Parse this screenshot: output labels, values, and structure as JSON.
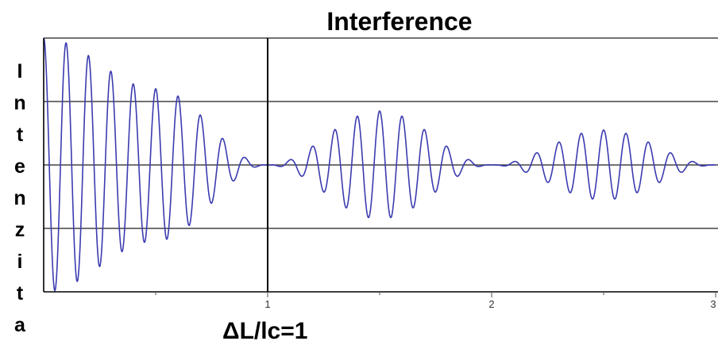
{
  "chart_data": {
    "type": "line",
    "title": "Interference",
    "ylabel": "Intenzita",
    "xlabel": "ΔL/lc=1",
    "x_ticks": [
      "1",
      "2",
      "3"
    ],
    "xlim": [
      0,
      3
    ],
    "ylim": [
      -2,
      2
    ],
    "grid": true,
    "series": [
      {
        "color": "#3b3bb0",
        "description_values": {
          "fringe_frequency_per_unit": 10,
          "envelope_amplitude_at": [
            {
              "x": 0.0,
              "amp": 2.0
            },
            {
              "x": 0.5,
              "amp": 1.2
            },
            {
              "x": 1.0,
              "amp": 0.0
            },
            {
              "x": 1.5,
              "amp": 0.85
            },
            {
              "x": 2.0,
              "amp": 0.0
            },
            {
              "x": 2.5,
              "amp": 0.55
            },
            {
              "x": 3.0,
              "amp": 0.0
            }
          ]
        }
      }
    ],
    "vertical_marker_x": 1
  }
}
